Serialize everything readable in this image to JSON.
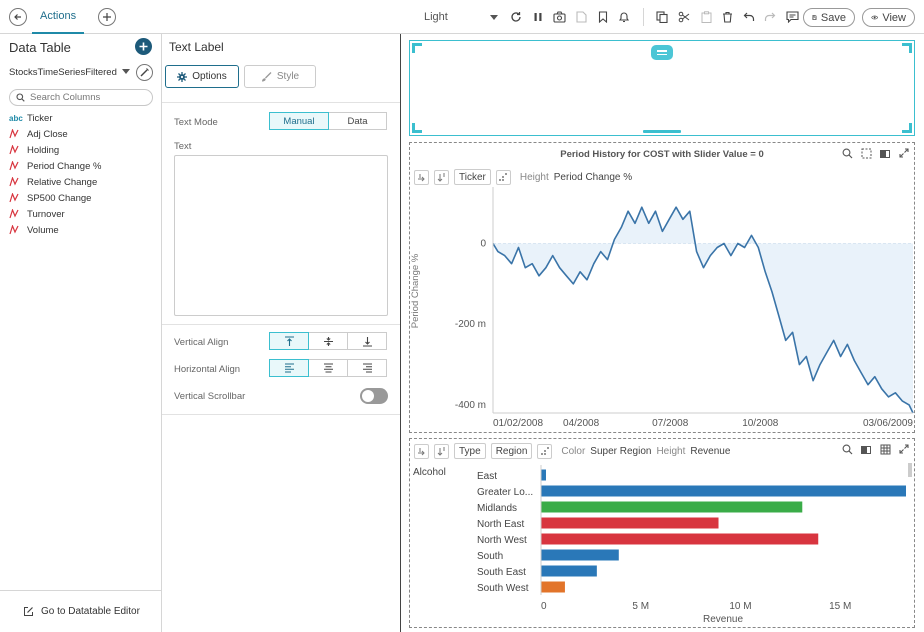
{
  "topbar": {
    "tab_label": "Actions",
    "theme": "Light",
    "save_label": "Save",
    "view_label": "View"
  },
  "data_table": {
    "title": "Data Table",
    "source": "StocksTimeSeriesFiltered",
    "search_placeholder": "Search Columns",
    "columns": [
      {
        "type": "abc",
        "name": "Ticker"
      },
      {
        "type": "numeric",
        "name": "Adj Close"
      },
      {
        "type": "numeric",
        "name": "Holding"
      },
      {
        "type": "numeric",
        "name": "Period Change %"
      },
      {
        "type": "numeric",
        "name": "Relative Change"
      },
      {
        "type": "numeric",
        "name": "SP500 Change"
      },
      {
        "type": "numeric",
        "name": "Turnover"
      },
      {
        "type": "numeric",
        "name": "Volume"
      }
    ],
    "footer_label": "Go to Datatable Editor"
  },
  "text_label": {
    "title": "Text Label",
    "options_tab": "Options",
    "style_tab": "Style",
    "text_mode_label": "Text Mode",
    "text_mode_options": [
      "Manual",
      "Data"
    ],
    "text_mode_selected": "Manual",
    "text_label": "Text",
    "text_value": "",
    "vertical_align_label": "Vertical Align",
    "horizontal_align_label": "Horizontal Align",
    "vertical_scrollbar_label": "Vertical Scrollbar",
    "vertical_scrollbar_on": false
  },
  "line_viz": {
    "title": "Period History for COST with Slider Value = 0",
    "chip_ticker": "Ticker",
    "height_label": "Height",
    "height_value": "Period Change %",
    "icons": [
      "search-icon",
      "select-icon",
      "export-icon",
      "expand-icon"
    ]
  },
  "bar_viz": {
    "chip_type": "Type",
    "chip_region": "Region",
    "color_label": "Color",
    "color_value": "Super Region",
    "height_label": "Height",
    "height_value": "Revenue",
    "icons": [
      "search-icon",
      "export-icon",
      "table-icon",
      "expand-icon"
    ]
  },
  "chart_data": [
    {
      "type": "line",
      "title": "Period History for COST with Slider Value = 0",
      "xlabel": "",
      "ylabel": "Period Change %",
      "x_ticks": [
        "01/02/2008",
        "04/2008",
        "07/2008",
        "10/2008",
        "03/06/2009"
      ],
      "y_ticks": [
        "0",
        "-200 m",
        "-400 m"
      ],
      "y_tick_values": [
        0,
        -0.2,
        -0.4
      ],
      "ylim": [
        -0.42,
        0.14
      ],
      "xlim": [
        "2008-01-02",
        "2009-03-06"
      ],
      "color": "#3a74a8",
      "fill": "#e9f2fa",
      "series": [
        {
          "values": [
            {
              "x": "2008-01-02",
              "y": 0.0
            },
            {
              "x": "2008-01-07",
              "y": -0.02
            },
            {
              "x": "2008-01-14",
              "y": -0.03
            },
            {
              "x": "2008-01-21",
              "y": -0.05
            },
            {
              "x": "2008-01-28",
              "y": -0.01
            },
            {
              "x": "2008-02-04",
              "y": -0.06
            },
            {
              "x": "2008-02-11",
              "y": -0.05
            },
            {
              "x": "2008-02-18",
              "y": -0.08
            },
            {
              "x": "2008-02-25",
              "y": -0.06
            },
            {
              "x": "2008-03-03",
              "y": -0.03
            },
            {
              "x": "2008-03-10",
              "y": -0.06
            },
            {
              "x": "2008-03-17",
              "y": -0.08
            },
            {
              "x": "2008-03-24",
              "y": -0.1
            },
            {
              "x": "2008-03-31",
              "y": -0.07
            },
            {
              "x": "2008-04-07",
              "y": -0.09
            },
            {
              "x": "2008-04-14",
              "y": -0.05
            },
            {
              "x": "2008-04-21",
              "y": -0.02
            },
            {
              "x": "2008-04-28",
              "y": -0.04
            },
            {
              "x": "2008-05-05",
              "y": 0.01
            },
            {
              "x": "2008-05-12",
              "y": 0.04
            },
            {
              "x": "2008-05-19",
              "y": 0.08
            },
            {
              "x": "2008-05-26",
              "y": 0.05
            },
            {
              "x": "2008-06-02",
              "y": 0.09
            },
            {
              "x": "2008-06-09",
              "y": 0.05
            },
            {
              "x": "2008-06-16",
              "y": 0.08
            },
            {
              "x": "2008-06-23",
              "y": 0.03
            },
            {
              "x": "2008-06-30",
              "y": 0.06
            },
            {
              "x": "2008-07-07",
              "y": 0.09
            },
            {
              "x": "2008-07-14",
              "y": 0.06
            },
            {
              "x": "2008-07-21",
              "y": 0.08
            },
            {
              "x": "2008-07-28",
              "y": -0.02
            },
            {
              "x": "2008-08-04",
              "y": -0.06
            },
            {
              "x": "2008-08-11",
              "y": -0.03
            },
            {
              "x": "2008-08-18",
              "y": -0.01
            },
            {
              "x": "2008-08-25",
              "y": 0.0
            },
            {
              "x": "2008-09-01",
              "y": -0.03
            },
            {
              "x": "2008-09-08",
              "y": 0.0
            },
            {
              "x": "2008-09-15",
              "y": -0.01
            },
            {
              "x": "2008-09-22",
              "y": 0.02
            },
            {
              "x": "2008-09-29",
              "y": -0.01
            },
            {
              "x": "2008-10-06",
              "y": -0.07
            },
            {
              "x": "2008-10-13",
              "y": -0.12
            },
            {
              "x": "2008-10-20",
              "y": -0.18
            },
            {
              "x": "2008-10-27",
              "y": -0.24
            },
            {
              "x": "2008-11-03",
              "y": -0.22
            },
            {
              "x": "2008-11-10",
              "y": -0.3
            },
            {
              "x": "2008-11-17",
              "y": -0.28
            },
            {
              "x": "2008-11-24",
              "y": -0.34
            },
            {
              "x": "2008-12-01",
              "y": -0.3
            },
            {
              "x": "2008-12-08",
              "y": -0.27
            },
            {
              "x": "2008-12-15",
              "y": -0.24
            },
            {
              "x": "2008-12-22",
              "y": -0.28
            },
            {
              "x": "2008-12-29",
              "y": -0.25
            },
            {
              "x": "2009-01-05",
              "y": -0.29
            },
            {
              "x": "2009-01-12",
              "y": -0.32
            },
            {
              "x": "2009-01-19",
              "y": -0.35
            },
            {
              "x": "2009-01-26",
              "y": -0.33
            },
            {
              "x": "2009-02-02",
              "y": -0.36
            },
            {
              "x": "2009-02-09",
              "y": -0.38
            },
            {
              "x": "2009-02-16",
              "y": -0.37
            },
            {
              "x": "2009-02-23",
              "y": -0.39
            },
            {
              "x": "2009-03-02",
              "y": -0.4
            },
            {
              "x": "2009-03-06",
              "y": -0.42
            }
          ]
        }
      ]
    },
    {
      "type": "bar",
      "orientation": "horizontal",
      "group": "Alcohol",
      "xlabel": "Revenue",
      "x_ticks": [
        "0",
        "5 M",
        "10 M",
        "15 M"
      ],
      "x_tick_values": [
        0,
        5000000,
        10000000,
        15000000
      ],
      "xlim": [
        0,
        18300000
      ],
      "categories": [
        "East",
        "Greater Lo...",
        "Midlands",
        "North East",
        "North West",
        "South",
        "South East",
        "South West"
      ],
      "values": [
        250000,
        18300000,
        13100000,
        8900000,
        13900000,
        3900000,
        2800000,
        1200000
      ],
      "colors": [
        "#2a78b8",
        "#2a78b8",
        "#3aac48",
        "#d8353f",
        "#d8353f",
        "#2a78b8",
        "#2a78b8",
        "#e2742a"
      ]
    }
  ]
}
